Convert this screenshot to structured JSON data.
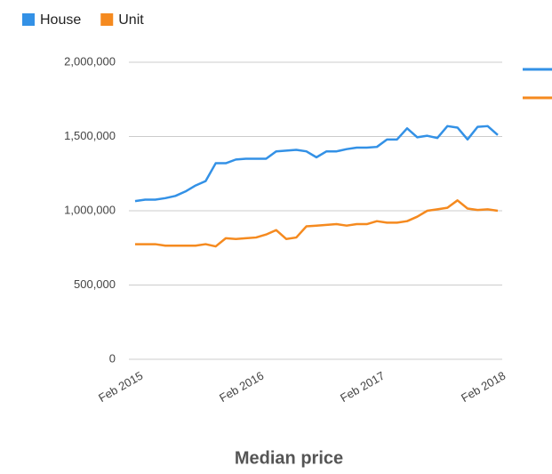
{
  "chart_data": {
    "type": "line",
    "title": "Median price",
    "categories": [
      "Feb 2015",
      null,
      null,
      null,
      null,
      null,
      null,
      null,
      null,
      null,
      null,
      null,
      "Feb 2016",
      null,
      null,
      null,
      null,
      null,
      null,
      null,
      null,
      null,
      null,
      null,
      "Feb 2017",
      null,
      null,
      null,
      null,
      null,
      null,
      null,
      null,
      null,
      null,
      null,
      "Feb 2018"
    ],
    "series": [
      {
        "name": "House",
        "color": "#3391e6",
        "values": [
          1065000,
          1075000,
          1075000,
          1085000,
          1100000,
          1130000,
          1170000,
          1200000,
          1320000,
          1320000,
          1345000,
          1350000,
          1350000,
          1350000,
          1400000,
          1405000,
          1410000,
          1400000,
          1360000,
          1400000,
          1400000,
          1415000,
          1425000,
          1425000,
          1430000,
          1480000,
          1480000,
          1555000,
          1495000,
          1505000,
          1490000,
          1570000,
          1560000,
          1480000,
          1565000,
          1570000,
          1510000
        ]
      },
      {
        "name": "Unit",
        "color": "#f58a1f",
        "values": [
          775000,
          775000,
          775000,
          765000,
          765000,
          765000,
          765000,
          775000,
          760000,
          815000,
          810000,
          815000,
          820000,
          840000,
          870000,
          810000,
          820000,
          895000,
          900000,
          905000,
          910000,
          900000,
          910000,
          910000,
          930000,
          920000,
          920000,
          930000,
          960000,
          1000000,
          1010000,
          1020000,
          1070000,
          1015000,
          1005000,
          1010000,
          1000000
        ]
      }
    ],
    "ylim": [
      0,
      2000000
    ],
    "yticks": [
      0,
      {
        "value": 500000,
        "label": "500,000"
      },
      {
        "value": 1000000,
        "label": "1,000,000"
      },
      {
        "value": 1500000,
        "label": "1,500,000"
      },
      {
        "value": 2000000,
        "label": "2,000,000"
      }
    ],
    "grid": true,
    "legend": "top-left"
  }
}
